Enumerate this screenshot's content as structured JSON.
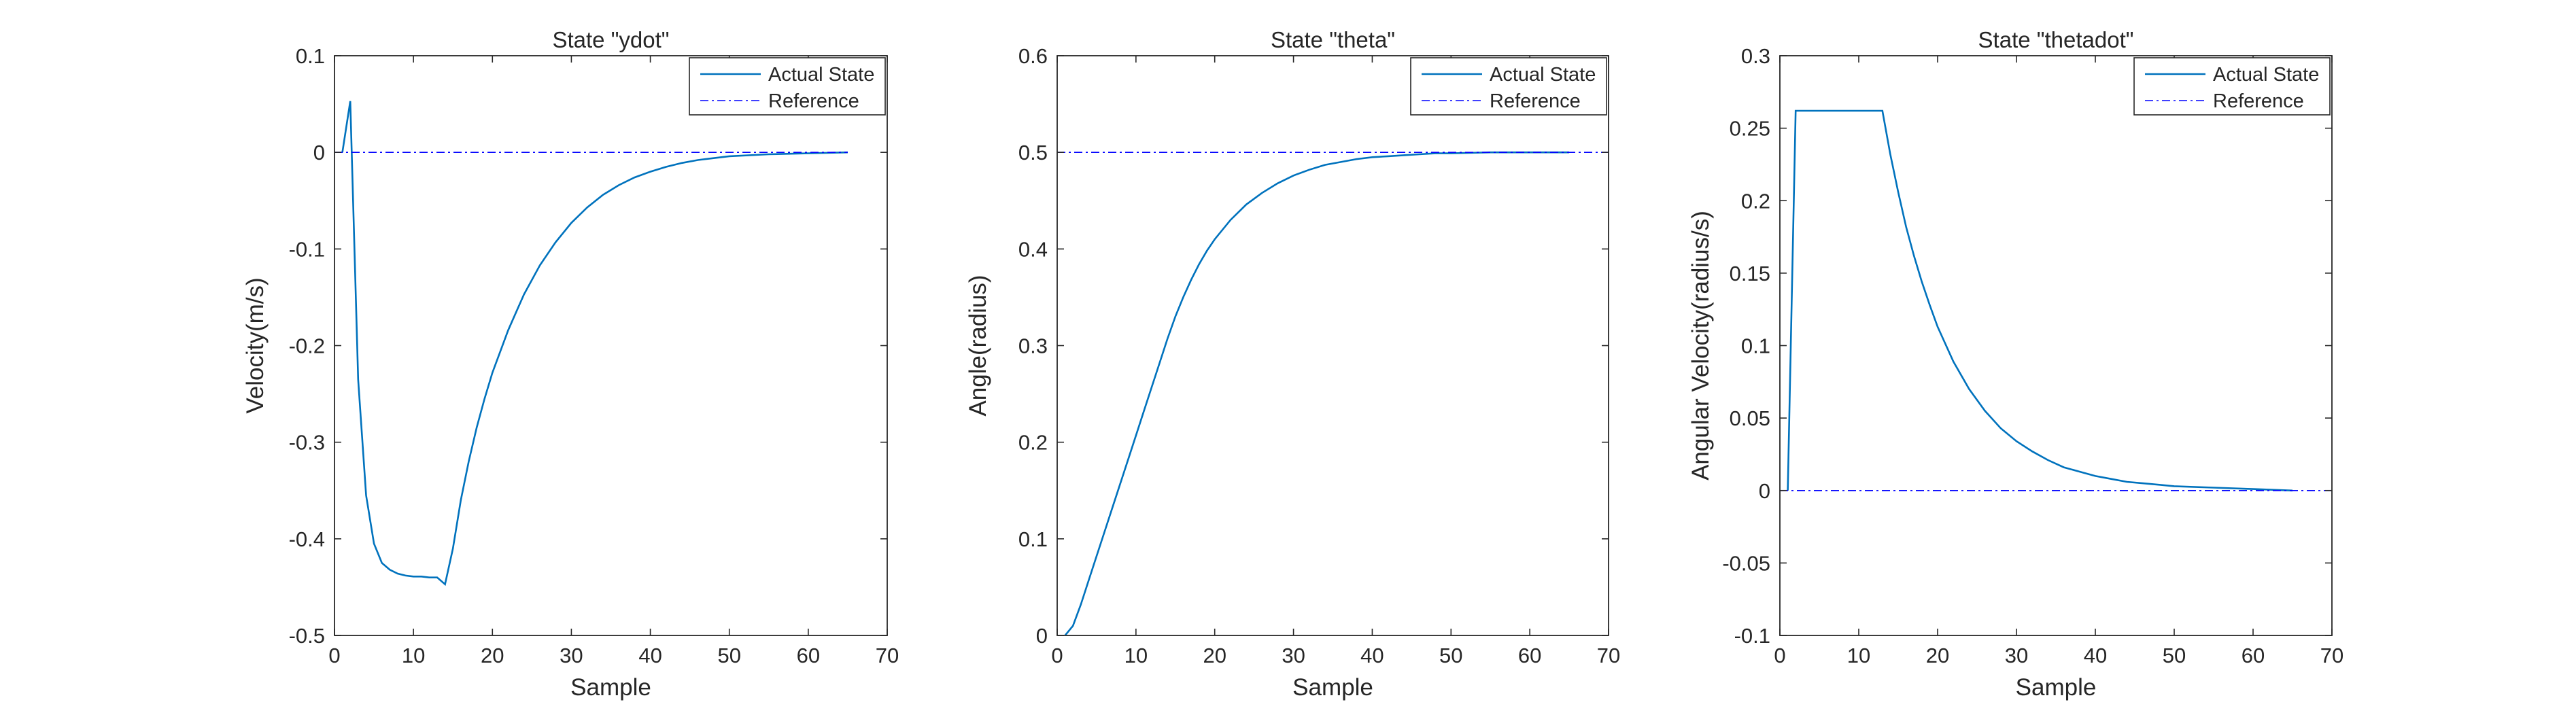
{
  "colors": {
    "actual": "#0072BD",
    "reference": "#0000FF",
    "axis": "#262626",
    "background": "#ffffff"
  },
  "chart_data": [
    {
      "type": "line",
      "title": "State \"ydot\"",
      "xlabel": "Sample",
      "ylabel": "Velocity(m/s)",
      "xlim": [
        0,
        70
      ],
      "ylim": [
        -0.5,
        0.1
      ],
      "xticks": [
        0,
        10,
        20,
        30,
        40,
        50,
        60,
        70
      ],
      "yticks": [
        -0.5,
        -0.4,
        -0.3,
        -0.2,
        -0.1,
        0,
        0.1
      ],
      "legend": {
        "position": "top-right",
        "entries": [
          "Actual State",
          "Reference"
        ]
      },
      "series": [
        {
          "name": "Actual State",
          "style": "solid",
          "x": [
            1,
            2,
            3,
            4,
            5,
            6,
            7,
            8,
            9,
            10,
            11,
            12,
            13,
            14,
            15,
            16,
            17,
            18,
            19,
            20,
            22,
            24,
            26,
            28,
            30,
            32,
            34,
            36,
            38,
            40,
            42,
            44,
            46,
            48,
            50,
            55,
            60,
            65
          ],
          "y": [
            0,
            0.053,
            -0.235,
            -0.355,
            -0.405,
            -0.425,
            -0.432,
            -0.436,
            -0.438,
            -0.439,
            -0.439,
            -0.44,
            -0.44,
            -0.447,
            -0.41,
            -0.36,
            -0.32,
            -0.285,
            -0.255,
            -0.228,
            -0.184,
            -0.147,
            -0.117,
            -0.093,
            -0.073,
            -0.057,
            -0.044,
            -0.034,
            -0.026,
            -0.02,
            -0.015,
            -0.011,
            -0.008,
            -0.006,
            -0.004,
            -0.002,
            -0.001,
            0
          ]
        },
        {
          "name": "Reference",
          "style": "dashdot",
          "x": [
            0,
            65
          ],
          "y": [
            0,
            0
          ]
        }
      ]
    },
    {
      "type": "line",
      "title": "State \"theta\"",
      "xlabel": "Sample",
      "ylabel": "Angle(radius)",
      "xlim": [
        0,
        70
      ],
      "ylim": [
        0,
        0.6
      ],
      "xticks": [
        0,
        10,
        20,
        30,
        40,
        50,
        60,
        70
      ],
      "yticks": [
        0,
        0.1,
        0.2,
        0.3,
        0.4,
        0.5,
        0.6
      ],
      "legend": {
        "position": "top-right",
        "entries": [
          "Actual State",
          "Reference"
        ]
      },
      "series": [
        {
          "name": "Actual State",
          "style": "solid",
          "x": [
            1,
            2,
            3,
            4,
            5,
            6,
            7,
            8,
            9,
            10,
            11,
            12,
            13,
            14,
            15,
            16,
            17,
            18,
            19,
            20,
            22,
            24,
            26,
            28,
            30,
            32,
            34,
            36,
            38,
            40,
            42,
            44,
            46,
            48,
            50,
            55,
            60,
            65
          ],
          "y": [
            0,
            0.01,
            0.032,
            0.057,
            0.082,
            0.107,
            0.132,
            0.157,
            0.182,
            0.207,
            0.232,
            0.257,
            0.282,
            0.307,
            0.33,
            0.35,
            0.368,
            0.384,
            0.398,
            0.41,
            0.43,
            0.446,
            0.458,
            0.468,
            0.476,
            0.482,
            0.487,
            0.49,
            0.493,
            0.495,
            0.496,
            0.497,
            0.498,
            0.499,
            0.499,
            0.5,
            0.5,
            0.5
          ]
        },
        {
          "name": "Reference",
          "style": "dashdot",
          "x": [
            0,
            70
          ],
          "y": [
            0.5,
            0.5
          ]
        }
      ]
    },
    {
      "type": "line",
      "title": "State \"thetadot\"",
      "xlabel": "Sample",
      "ylabel": "Angular Velocity(radius/s)",
      "xlim": [
        0,
        70
      ],
      "ylim": [
        -0.1,
        0.3
      ],
      "xticks": [
        0,
        10,
        20,
        30,
        40,
        50,
        60,
        70
      ],
      "yticks": [
        -0.1,
        -0.05,
        0,
        0.05,
        0.1,
        0.15,
        0.2,
        0.25,
        0.3
      ],
      "legend": {
        "position": "top-right",
        "entries": [
          "Actual State",
          "Reference"
        ]
      },
      "series": [
        {
          "name": "Actual State",
          "style": "solid",
          "x": [
            1,
            2,
            3,
            4,
            5,
            6,
            7,
            8,
            9,
            10,
            11,
            12,
            13,
            14,
            15,
            16,
            17,
            18,
            19,
            20,
            22,
            24,
            26,
            28,
            30,
            32,
            34,
            36,
            38,
            40,
            42,
            44,
            46,
            48,
            50,
            55,
            60,
            65
          ],
          "y": [
            0,
            0.262,
            0.262,
            0.262,
            0.262,
            0.262,
            0.262,
            0.262,
            0.262,
            0.262,
            0.262,
            0.262,
            0.262,
            0.232,
            0.206,
            0.182,
            0.162,
            0.144,
            0.128,
            0.113,
            0.089,
            0.07,
            0.055,
            0.043,
            0.034,
            0.027,
            0.021,
            0.016,
            0.013,
            0.01,
            0.008,
            0.006,
            0.005,
            0.004,
            0.003,
            0.002,
            0.001,
            0
          ]
        },
        {
          "name": "Reference",
          "style": "dashdot",
          "x": [
            0,
            70
          ],
          "y": [
            0,
            0
          ]
        }
      ]
    }
  ]
}
